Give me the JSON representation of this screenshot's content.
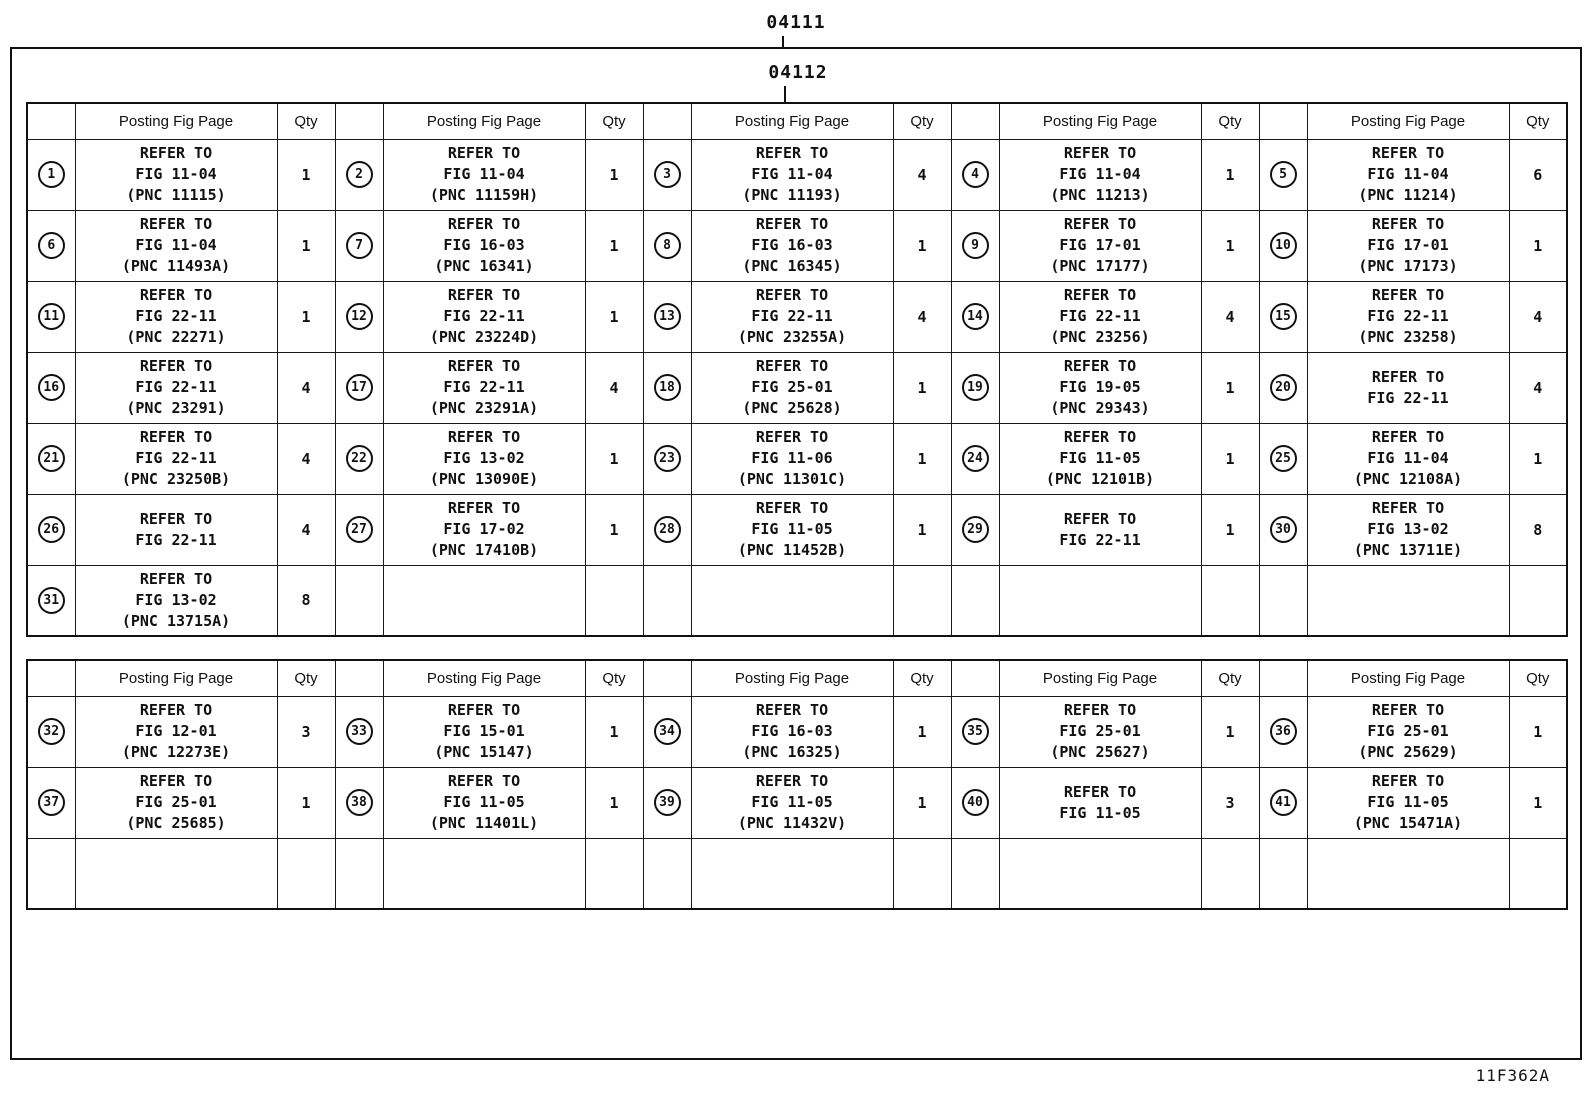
{
  "page": {
    "code_outer": "04111",
    "code_inner": "04112",
    "footer_code": "11F362A"
  },
  "column_headers": {
    "posting": "Posting Fig Page",
    "qty": "Qty"
  },
  "tables": [
    {
      "name": "upper",
      "rows": [
        [
          {
            "num": "1",
            "lines": [
              "REFER TO",
              "FIG 11-04",
              "(PNC 11115)"
            ],
            "qty": "1"
          },
          {
            "num": "2",
            "lines": [
              "REFER TO",
              "FIG 11-04",
              "(PNC 11159H)"
            ],
            "qty": "1"
          },
          {
            "num": "3",
            "lines": [
              "REFER TO",
              "FIG 11-04",
              "(PNC 11193)"
            ],
            "qty": "4"
          },
          {
            "num": "4",
            "lines": [
              "REFER TO",
              "FIG 11-04",
              "(PNC 11213)"
            ],
            "qty": "1"
          },
          {
            "num": "5",
            "lines": [
              "REFER TO",
              "FIG 11-04",
              "(PNC 11214)"
            ],
            "qty": "6"
          }
        ],
        [
          {
            "num": "6",
            "lines": [
              "REFER TO",
              "FIG 11-04",
              "(PNC 11493A)"
            ],
            "qty": "1"
          },
          {
            "num": "7",
            "lines": [
              "REFER TO",
              "FIG 16-03",
              "(PNC 16341)"
            ],
            "qty": "1"
          },
          {
            "num": "8",
            "lines": [
              "REFER TO",
              "FIG 16-03",
              "(PNC 16345)"
            ],
            "qty": "1"
          },
          {
            "num": "9",
            "lines": [
              "REFER TO",
              "FIG 17-01",
              "(PNC 17177)"
            ],
            "qty": "1"
          },
          {
            "num": "10",
            "lines": [
              "REFER TO",
              "FIG 17-01",
              "(PNC 17173)"
            ],
            "qty": "1"
          }
        ],
        [
          {
            "num": "11",
            "lines": [
              "REFER TO",
              "FIG 22-11",
              "(PNC 22271)"
            ],
            "qty": "1"
          },
          {
            "num": "12",
            "lines": [
              "REFER TO",
              "FIG 22-11",
              "(PNC 23224D)"
            ],
            "qty": "1"
          },
          {
            "num": "13",
            "lines": [
              "REFER TO",
              "FIG 22-11",
              "(PNC 23255A)"
            ],
            "qty": "4"
          },
          {
            "num": "14",
            "lines": [
              "REFER TO",
              "FIG 22-11",
              "(PNC 23256)"
            ],
            "qty": "4"
          },
          {
            "num": "15",
            "lines": [
              "REFER TO",
              "FIG 22-11",
              "(PNC 23258)"
            ],
            "qty": "4"
          }
        ],
        [
          {
            "num": "16",
            "lines": [
              "REFER TO",
              "FIG 22-11",
              "(PNC 23291)"
            ],
            "qty": "4"
          },
          {
            "num": "17",
            "lines": [
              "REFER TO",
              "FIG 22-11",
              "(PNC 23291A)"
            ],
            "qty": "4"
          },
          {
            "num": "18",
            "lines": [
              "REFER TO",
              "FIG 25-01",
              "(PNC 25628)"
            ],
            "qty": "1"
          },
          {
            "num": "19",
            "lines": [
              "REFER TO",
              "FIG 19-05",
              "(PNC 29343)"
            ],
            "qty": "1"
          },
          {
            "num": "20",
            "lines": [
              "REFER TO",
              "FIG 22-11"
            ],
            "qty": "4"
          }
        ],
        [
          {
            "num": "21",
            "lines": [
              "REFER TO",
              "FIG 22-11",
              "(PNC 23250B)"
            ],
            "qty": "4"
          },
          {
            "num": "22",
            "lines": [
              "REFER TO",
              "FIG 13-02",
              "(PNC 13090E)"
            ],
            "qty": "1"
          },
          {
            "num": "23",
            "lines": [
              "REFER TO",
              "FIG 11-06",
              "(PNC 11301C)"
            ],
            "qty": "1"
          },
          {
            "num": "24",
            "lines": [
              "REFER TO",
              "FIG 11-05",
              "(PNC 12101B)"
            ],
            "qty": "1"
          },
          {
            "num": "25",
            "lines": [
              "REFER TO",
              "FIG 11-04",
              "(PNC 12108A)"
            ],
            "qty": "1"
          }
        ],
        [
          {
            "num": "26",
            "lines": [
              "REFER TO",
              "FIG 22-11"
            ],
            "qty": "4"
          },
          {
            "num": "27",
            "lines": [
              "REFER TO",
              "FIG 17-02",
              "(PNC 17410B)"
            ],
            "qty": "1"
          },
          {
            "num": "28",
            "lines": [
              "REFER TO",
              "FIG 11-05",
              "(PNC 11452B)"
            ],
            "qty": "1"
          },
          {
            "num": "29",
            "lines": [
              "REFER TO",
              "FIG 22-11"
            ],
            "qty": "1"
          },
          {
            "num": "30",
            "lines": [
              "REFER TO",
              "FIG 13-02",
              "(PNC 13711E)"
            ],
            "qty": "8"
          }
        ],
        [
          {
            "num": "31",
            "lines": [
              "REFER TO",
              "FIG 13-02",
              "(PNC 13715A)"
            ],
            "qty": "8"
          },
          null,
          null,
          null,
          null
        ]
      ]
    },
    {
      "name": "lower",
      "rows": [
        [
          {
            "num": "32",
            "lines": [
              "REFER TO",
              "FIG 12-01",
              "(PNC 12273E)"
            ],
            "qty": "3"
          },
          {
            "num": "33",
            "lines": [
              "REFER TO",
              "FIG 15-01",
              "(PNC 15147)"
            ],
            "qty": "1"
          },
          {
            "num": "34",
            "lines": [
              "REFER TO",
              "FIG 16-03",
              "(PNC 16325)"
            ],
            "qty": "1"
          },
          {
            "num": "35",
            "lines": [
              "REFER TO",
              "FIG 25-01",
              "(PNC 25627)"
            ],
            "qty": "1"
          },
          {
            "num": "36",
            "lines": [
              "REFER TO",
              "FIG 25-01",
              "(PNC 25629)"
            ],
            "qty": "1"
          }
        ],
        [
          {
            "num": "37",
            "lines": [
              "REFER TO",
              "FIG 25-01",
              "(PNC 25685)"
            ],
            "qty": "1"
          },
          {
            "num": "38",
            "lines": [
              "REFER TO",
              "FIG 11-05",
              "(PNC 11401L)"
            ],
            "qty": "1"
          },
          {
            "num": "39",
            "lines": [
              "REFER TO",
              "FIG 11-05",
              "(PNC 11432V)"
            ],
            "qty": "1"
          },
          {
            "num": "40",
            "lines": [
              "REFER TO",
              "FIG 11-05"
            ],
            "qty": "3"
          },
          {
            "num": "41",
            "lines": [
              "REFER TO",
              "FIG 11-05",
              "(PNC 15471A)"
            ],
            "qty": "1"
          }
        ],
        [
          null,
          null,
          null,
          null,
          null
        ]
      ]
    }
  ]
}
